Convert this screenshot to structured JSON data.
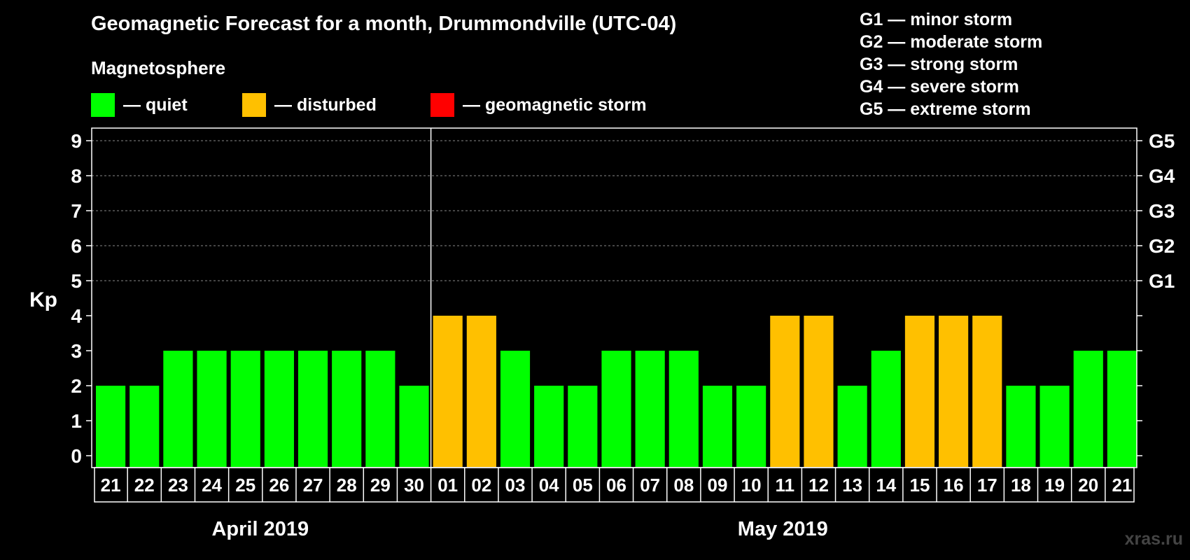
{
  "chart_data": {
    "type": "bar",
    "title": "Geomagnetic Forecast for a month, Drummondville (UTC-04)",
    "subtitle": "Magnetosphere",
    "ylabel": "Kp",
    "ylim": [
      0,
      9
    ],
    "yticks": [
      "0",
      "1",
      "2",
      "3",
      "4",
      "5",
      "6",
      "7",
      "8",
      "9"
    ],
    "right_axis": [
      {
        "kp": 5,
        "label": "G1"
      },
      {
        "kp": 6,
        "label": "G2"
      },
      {
        "kp": 7,
        "label": "G3"
      },
      {
        "kp": 8,
        "label": "G4"
      },
      {
        "kp": 9,
        "label": "G5"
      }
    ],
    "categories": [
      "21",
      "22",
      "23",
      "24",
      "25",
      "26",
      "27",
      "28",
      "29",
      "30",
      "01",
      "02",
      "03",
      "04",
      "05",
      "06",
      "07",
      "08",
      "09",
      "10",
      "11",
      "12",
      "13",
      "14",
      "15",
      "16",
      "17",
      "18",
      "19",
      "20",
      "21"
    ],
    "values": [
      2,
      2,
      3,
      3,
      3,
      3,
      3,
      3,
      3,
      2,
      4,
      4,
      3,
      2,
      2,
      3,
      3,
      3,
      2,
      2,
      4,
      4,
      2,
      3,
      4,
      4,
      4,
      2,
      2,
      3,
      3
    ],
    "months": [
      {
        "label": "April 2019",
        "count": 10
      },
      {
        "label": "May 2019",
        "count": 21
      }
    ],
    "legend": [
      {
        "label": "— quiet",
        "color": "#00ff00"
      },
      {
        "label": "— disturbed",
        "color": "#ffc000"
      },
      {
        "label": "— geomagnetic storm",
        "color": "#ff0000"
      }
    ],
    "storm_scale": [
      "G1 — minor storm",
      "G2 — moderate storm",
      "G3 — strong storm",
      "G4 — severe storm",
      "G5 — extreme storm"
    ]
  },
  "watermark": "xras.ru"
}
